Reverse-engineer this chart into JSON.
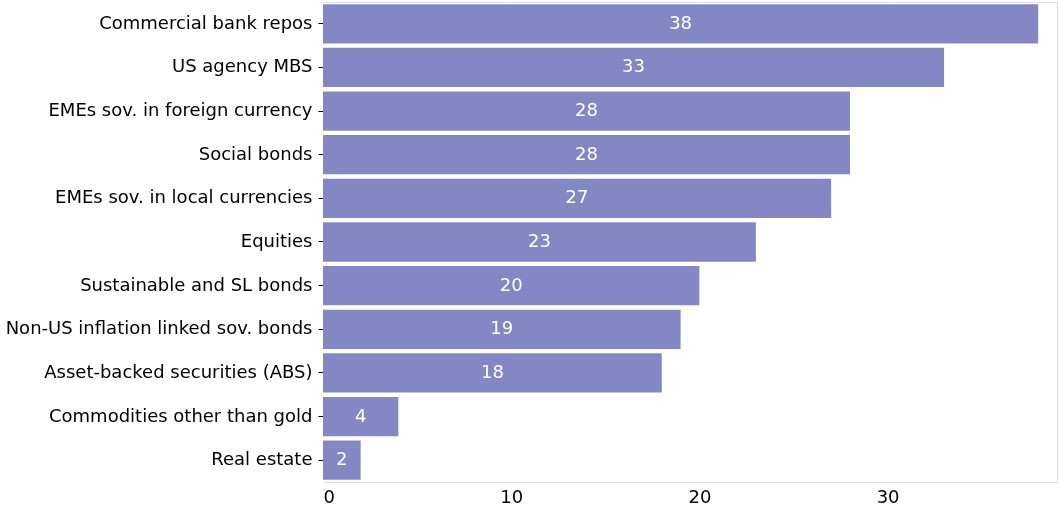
{
  "chart_data": {
    "type": "bar",
    "orientation": "horizontal",
    "categories": [
      "Commercial bank repos",
      "US agency MBS",
      "EMEs sov. in foreign currency",
      "Social bonds",
      "EMEs sov. in local currencies",
      "Equities",
      "Sustainable and SL bonds",
      "Non-US inflation linked sov. bonds",
      "Asset-backed securities (ABS)",
      "Commodities other than gold",
      "Real estate"
    ],
    "values": [
      38,
      33,
      28,
      28,
      27,
      23,
      20,
      19,
      18,
      4,
      2
    ],
    "color": "#8388c4",
    "xlim": [
      0,
      39
    ],
    "xticks": [
      0,
      10,
      20,
      30
    ],
    "grid": "x",
    "data_labels": true
  }
}
